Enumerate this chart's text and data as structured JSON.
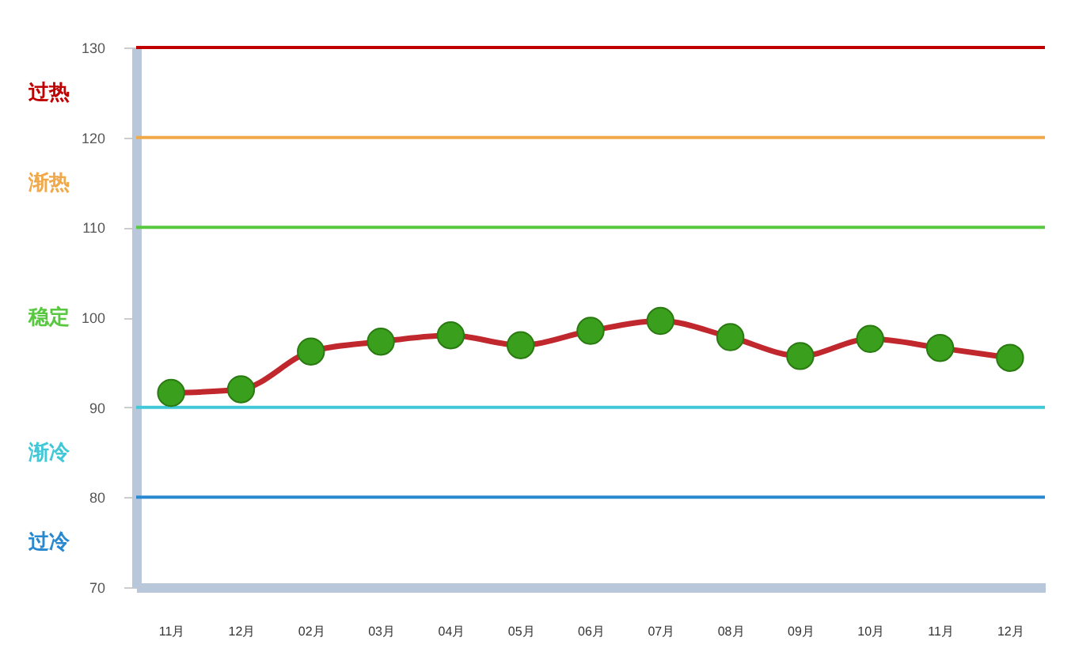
{
  "chart_data": {
    "type": "line",
    "categories": [
      "11月",
      "12月",
      "02月",
      "03月",
      "04月",
      "05月",
      "06月",
      "07月",
      "08月",
      "09月",
      "10月",
      "11月",
      "12月"
    ],
    "series": [
      {
        "color": "#c0282d",
        "values": [
          91.6,
          92.0,
          96.2,
          97.3,
          98.0,
          96.9,
          98.5,
          99.6,
          97.8,
          95.7,
          97.6,
          96.6,
          95.5
        ]
      }
    ],
    "ylim": [
      70,
      130
    ],
    "yticks": [
      70,
      80,
      90,
      100,
      110,
      120,
      130
    ],
    "ref_lines": [
      {
        "axis": "y",
        "value": 130,
        "color": "#c00000"
      },
      {
        "axis": "y",
        "value": 120,
        "color": "#f0a848"
      },
      {
        "axis": "y",
        "value": 110,
        "color": "#58c840"
      },
      {
        "axis": "y",
        "value": 90,
        "color": "#40c8d8"
      },
      {
        "axis": "y",
        "value": 80,
        "color": "#2888d0"
      }
    ],
    "annotations": [
      "过热",
      "渐热",
      "稳定",
      "渐冷",
      "过冷"
    ],
    "grid": false,
    "marker": "circle",
    "line_style": "solid"
  }
}
